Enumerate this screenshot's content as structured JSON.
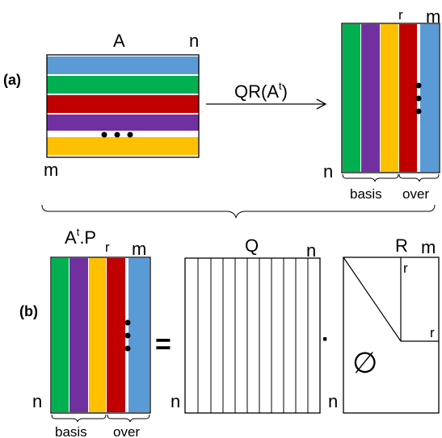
{
  "colors": {
    "blue": "#5B9BD5",
    "green": "#00B050",
    "red": "#C00000",
    "purple": "#7030A0",
    "yellow": "#FFC000",
    "black": "#000000"
  },
  "part_a": {
    "tag": "(a)",
    "matrix_label": "A",
    "col_dim": "n",
    "row_dim": "m",
    "operation": "QR(A",
    "operation_sup": "t",
    "operation_close": ")",
    "result": {
      "rank_label": "r",
      "col_dim": "m",
      "row_dim": "n",
      "basis_label": "basis",
      "over_label": "over"
    }
  },
  "part_b": {
    "tag": "(b)",
    "lhs_label_base": "A",
    "lhs_label_sup": "t",
    "lhs_label_rest": ".P",
    "lhs_rank_label": "r",
    "lhs_col_dim": "m",
    "lhs_row_dim": "n",
    "basis_label": "basis",
    "over_label": "over",
    "equals": "=",
    "q_label": "Q",
    "q_col_dim": "n",
    "q_row_dim": "n",
    "dot": "·",
    "r_label": "R",
    "r_col_dim": "m",
    "r_block_top": "r",
    "r_block_right": "r",
    "r_row_dim": "n",
    "empty_symbol": "∅"
  }
}
